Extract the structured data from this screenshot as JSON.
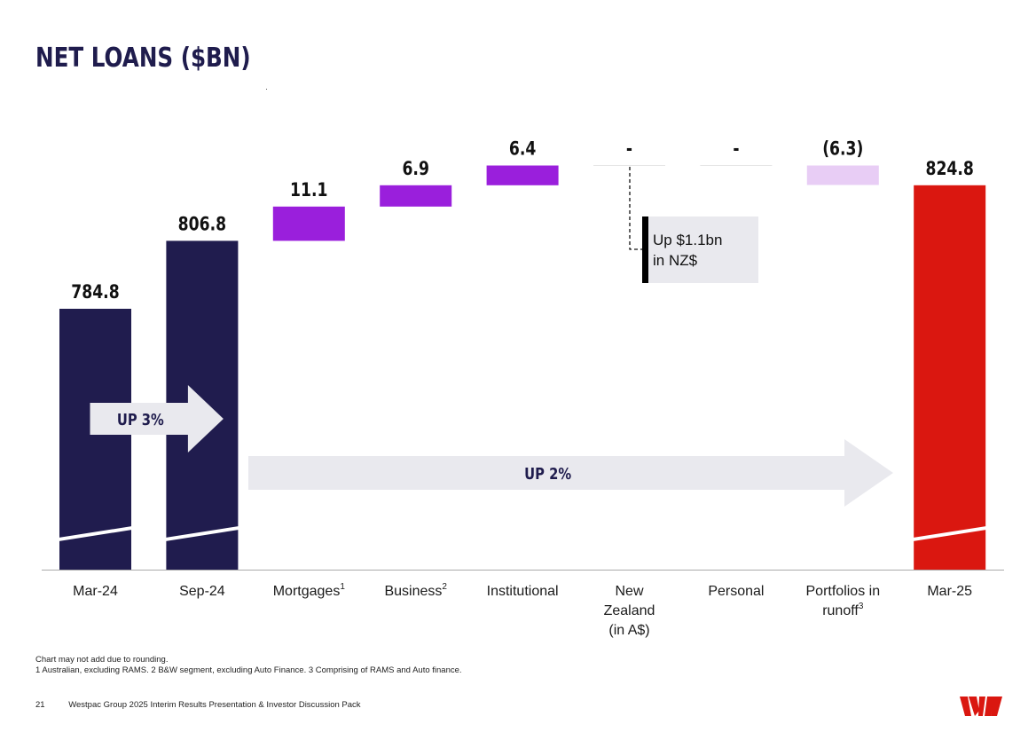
{
  "page": {
    "title": "NET LOANS ($BN)",
    "footnotes": [
      "Chart may not add due to rounding.",
      "1 Australian, excluding RAMS. 2 B&W segment, excluding Auto Finance. 3 Comprising of RAMS and Auto finance."
    ],
    "page_number": "21",
    "footer_text": "Westpac Group 2025 Interim Results Presentation & Investor Discussion Pack",
    "logo": "westpac-logo"
  },
  "chart_data": {
    "type": "bar",
    "subtype": "waterfall",
    "axis_break": true,
    "colors": {
      "total_dark": "#201c4e",
      "total_final": "#da1710",
      "increase": "#9a1fdc",
      "decrease": "#e8cdf5",
      "arrow": "#e9e9ee"
    },
    "categories": [
      {
        "label": "Mar-24",
        "sup": ""
      },
      {
        "label": "Sep-24",
        "sup": ""
      },
      {
        "label": "Mortgages",
        "sup": "1"
      },
      {
        "label": "Business",
        "sup": "2"
      },
      {
        "label": "Institutional",
        "sup": ""
      },
      {
        "label": "New Zealand (in A$)",
        "lines": [
          "New",
          "Zealand",
          "(in A$)"
        ],
        "sup": ""
      },
      {
        "label": "Personal",
        "sup": ""
      },
      {
        "label": "Portfolios in runoff",
        "lines": [
          "Portfolios in",
          "runoff"
        ],
        "sup": "3"
      },
      {
        "label": "Mar-25",
        "sup": ""
      }
    ],
    "bars": [
      {
        "kind": "total",
        "value": 784.8,
        "label": "784.8",
        "color": "total_dark"
      },
      {
        "kind": "total",
        "value": 806.8,
        "label": "806.8",
        "color": "total_dark"
      },
      {
        "kind": "delta",
        "value": 11.1,
        "label": "11.1",
        "color": "increase"
      },
      {
        "kind": "delta",
        "value": 6.9,
        "label": "6.9",
        "color": "increase"
      },
      {
        "kind": "delta",
        "value": 6.4,
        "label": "6.4",
        "color": "increase"
      },
      {
        "kind": "delta",
        "value": 0,
        "label": "-",
        "color": "increase"
      },
      {
        "kind": "delta",
        "value": 0,
        "label": "-",
        "color": "increase"
      },
      {
        "kind": "delta",
        "value": -6.3,
        "label": "(6.3)",
        "color": "decrease"
      },
      {
        "kind": "total",
        "value": 824.8,
        "label": "824.8",
        "color": "total_final"
      }
    ],
    "annotations": {
      "nz_callout": [
        "Up $1.1bn",
        "in NZ$"
      ],
      "arrow_1": {
        "text": "UP 3%",
        "from": 0,
        "to": 1
      },
      "arrow_2": {
        "text": "UP 2%",
        "from": 1,
        "to": 8
      }
    }
  }
}
